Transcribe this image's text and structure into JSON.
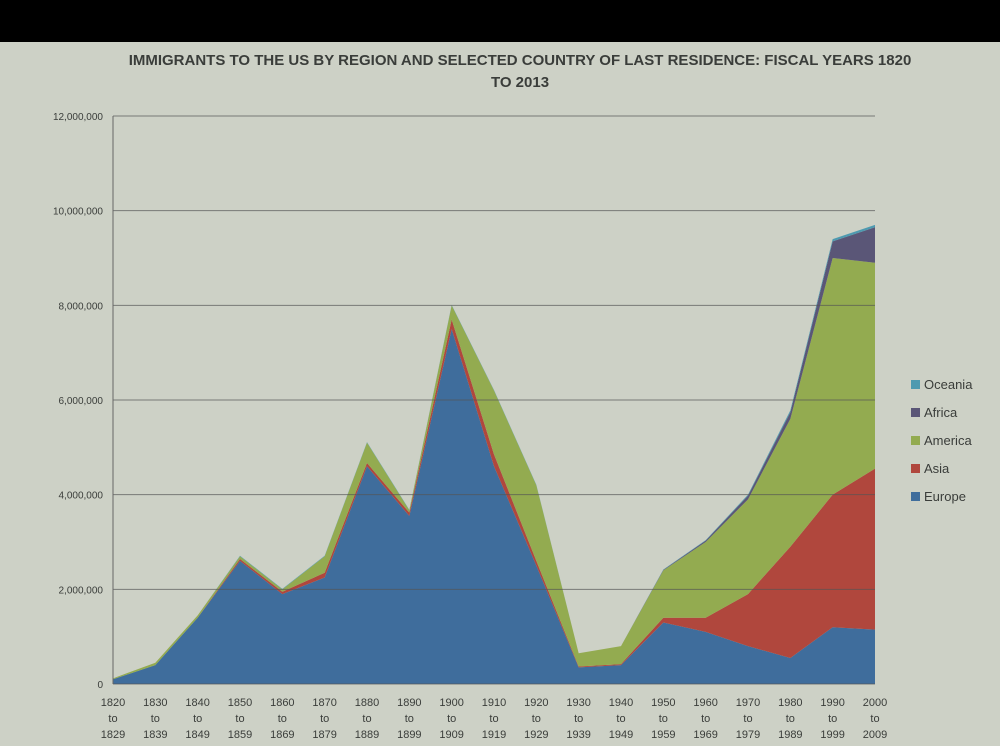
{
  "chart_data": {
    "type": "area",
    "stacked": true,
    "title": "IMMIGRANTS TO THE US BY REGION AND SELECTED COUNTRY OF LAST RESIDENCE: FISCAL YEARS 1820 TO 2013",
    "xlabel": "",
    "ylabel": "",
    "ylim": [
      0,
      12000000
    ],
    "yticks": [
      "0",
      "2,000,000",
      "4,000,000",
      "6,000,000",
      "8,000,000",
      "10,000,000",
      "12,000,000"
    ],
    "grid": true,
    "legend_position": "right",
    "categories": [
      [
        "1820",
        "to",
        "1829"
      ],
      [
        "1830",
        "to",
        "1839"
      ],
      [
        "1840",
        "to",
        "1849"
      ],
      [
        "1850",
        "to",
        "1859"
      ],
      [
        "1860",
        "to",
        "1869"
      ],
      [
        "1870",
        "to",
        "1879"
      ],
      [
        "1880",
        "to",
        "1889"
      ],
      [
        "1890",
        "to",
        "1899"
      ],
      [
        "1900",
        "to",
        "1909"
      ],
      [
        "1910",
        "to",
        "1919"
      ],
      [
        "1920",
        "to",
        "1929"
      ],
      [
        "1930",
        "to",
        "1939"
      ],
      [
        "1940",
        "to",
        "1949"
      ],
      [
        "1950",
        "to",
        "1959"
      ],
      [
        "1960",
        "to",
        "1969"
      ],
      [
        "1970",
        "to",
        "1979"
      ],
      [
        "1980",
        "to",
        "1989"
      ],
      [
        "1990",
        "to",
        "1999"
      ],
      [
        "2000",
        "to",
        "2009"
      ]
    ],
    "series": [
      {
        "name": "Europe",
        "color": "#3f6d9c",
        "values": [
          100000,
          400000,
          1400000,
          2600000,
          1900000,
          2250000,
          4600000,
          3550000,
          7500000,
          4600000,
          2500000,
          350000,
          400000,
          1300000,
          1100000,
          800000,
          550000,
          1200000,
          1150000
        ]
      },
      {
        "name": "Asia",
        "color": "#b0473d",
        "values": [
          0,
          0,
          0,
          40000,
          50000,
          100000,
          70000,
          70000,
          200000,
          250000,
          100000,
          20000,
          20000,
          100000,
          300000,
          1100000,
          2350000,
          2800000,
          3400000
        ]
      },
      {
        "name": "America",
        "color": "#93ab50",
        "values": [
          20000,
          50000,
          50000,
          60000,
          50000,
          350000,
          430000,
          50000,
          300000,
          1350000,
          1600000,
          280000,
          380000,
          1000000,
          1600000,
          2000000,
          2700000,
          5000000,
          4350000
        ]
      },
      {
        "name": "Africa",
        "color": "#5a5677",
        "values": [
          0,
          0,
          0,
          0,
          0,
          0,
          0,
          0,
          0,
          0,
          0,
          0,
          0,
          10000,
          30000,
          80000,
          140000,
          350000,
          750000
        ]
      },
      {
        "name": "Oceania",
        "color": "#4e9ab0",
        "values": [
          0,
          0,
          0,
          10000,
          10000,
          10000,
          10000,
          10000,
          10000,
          10000,
          10000,
          0,
          0,
          10000,
          10000,
          20000,
          40000,
          50000,
          50000
        ]
      }
    ],
    "legend_order": [
      "Oceania",
      "Africa",
      "America",
      "Asia",
      "Europe"
    ]
  }
}
